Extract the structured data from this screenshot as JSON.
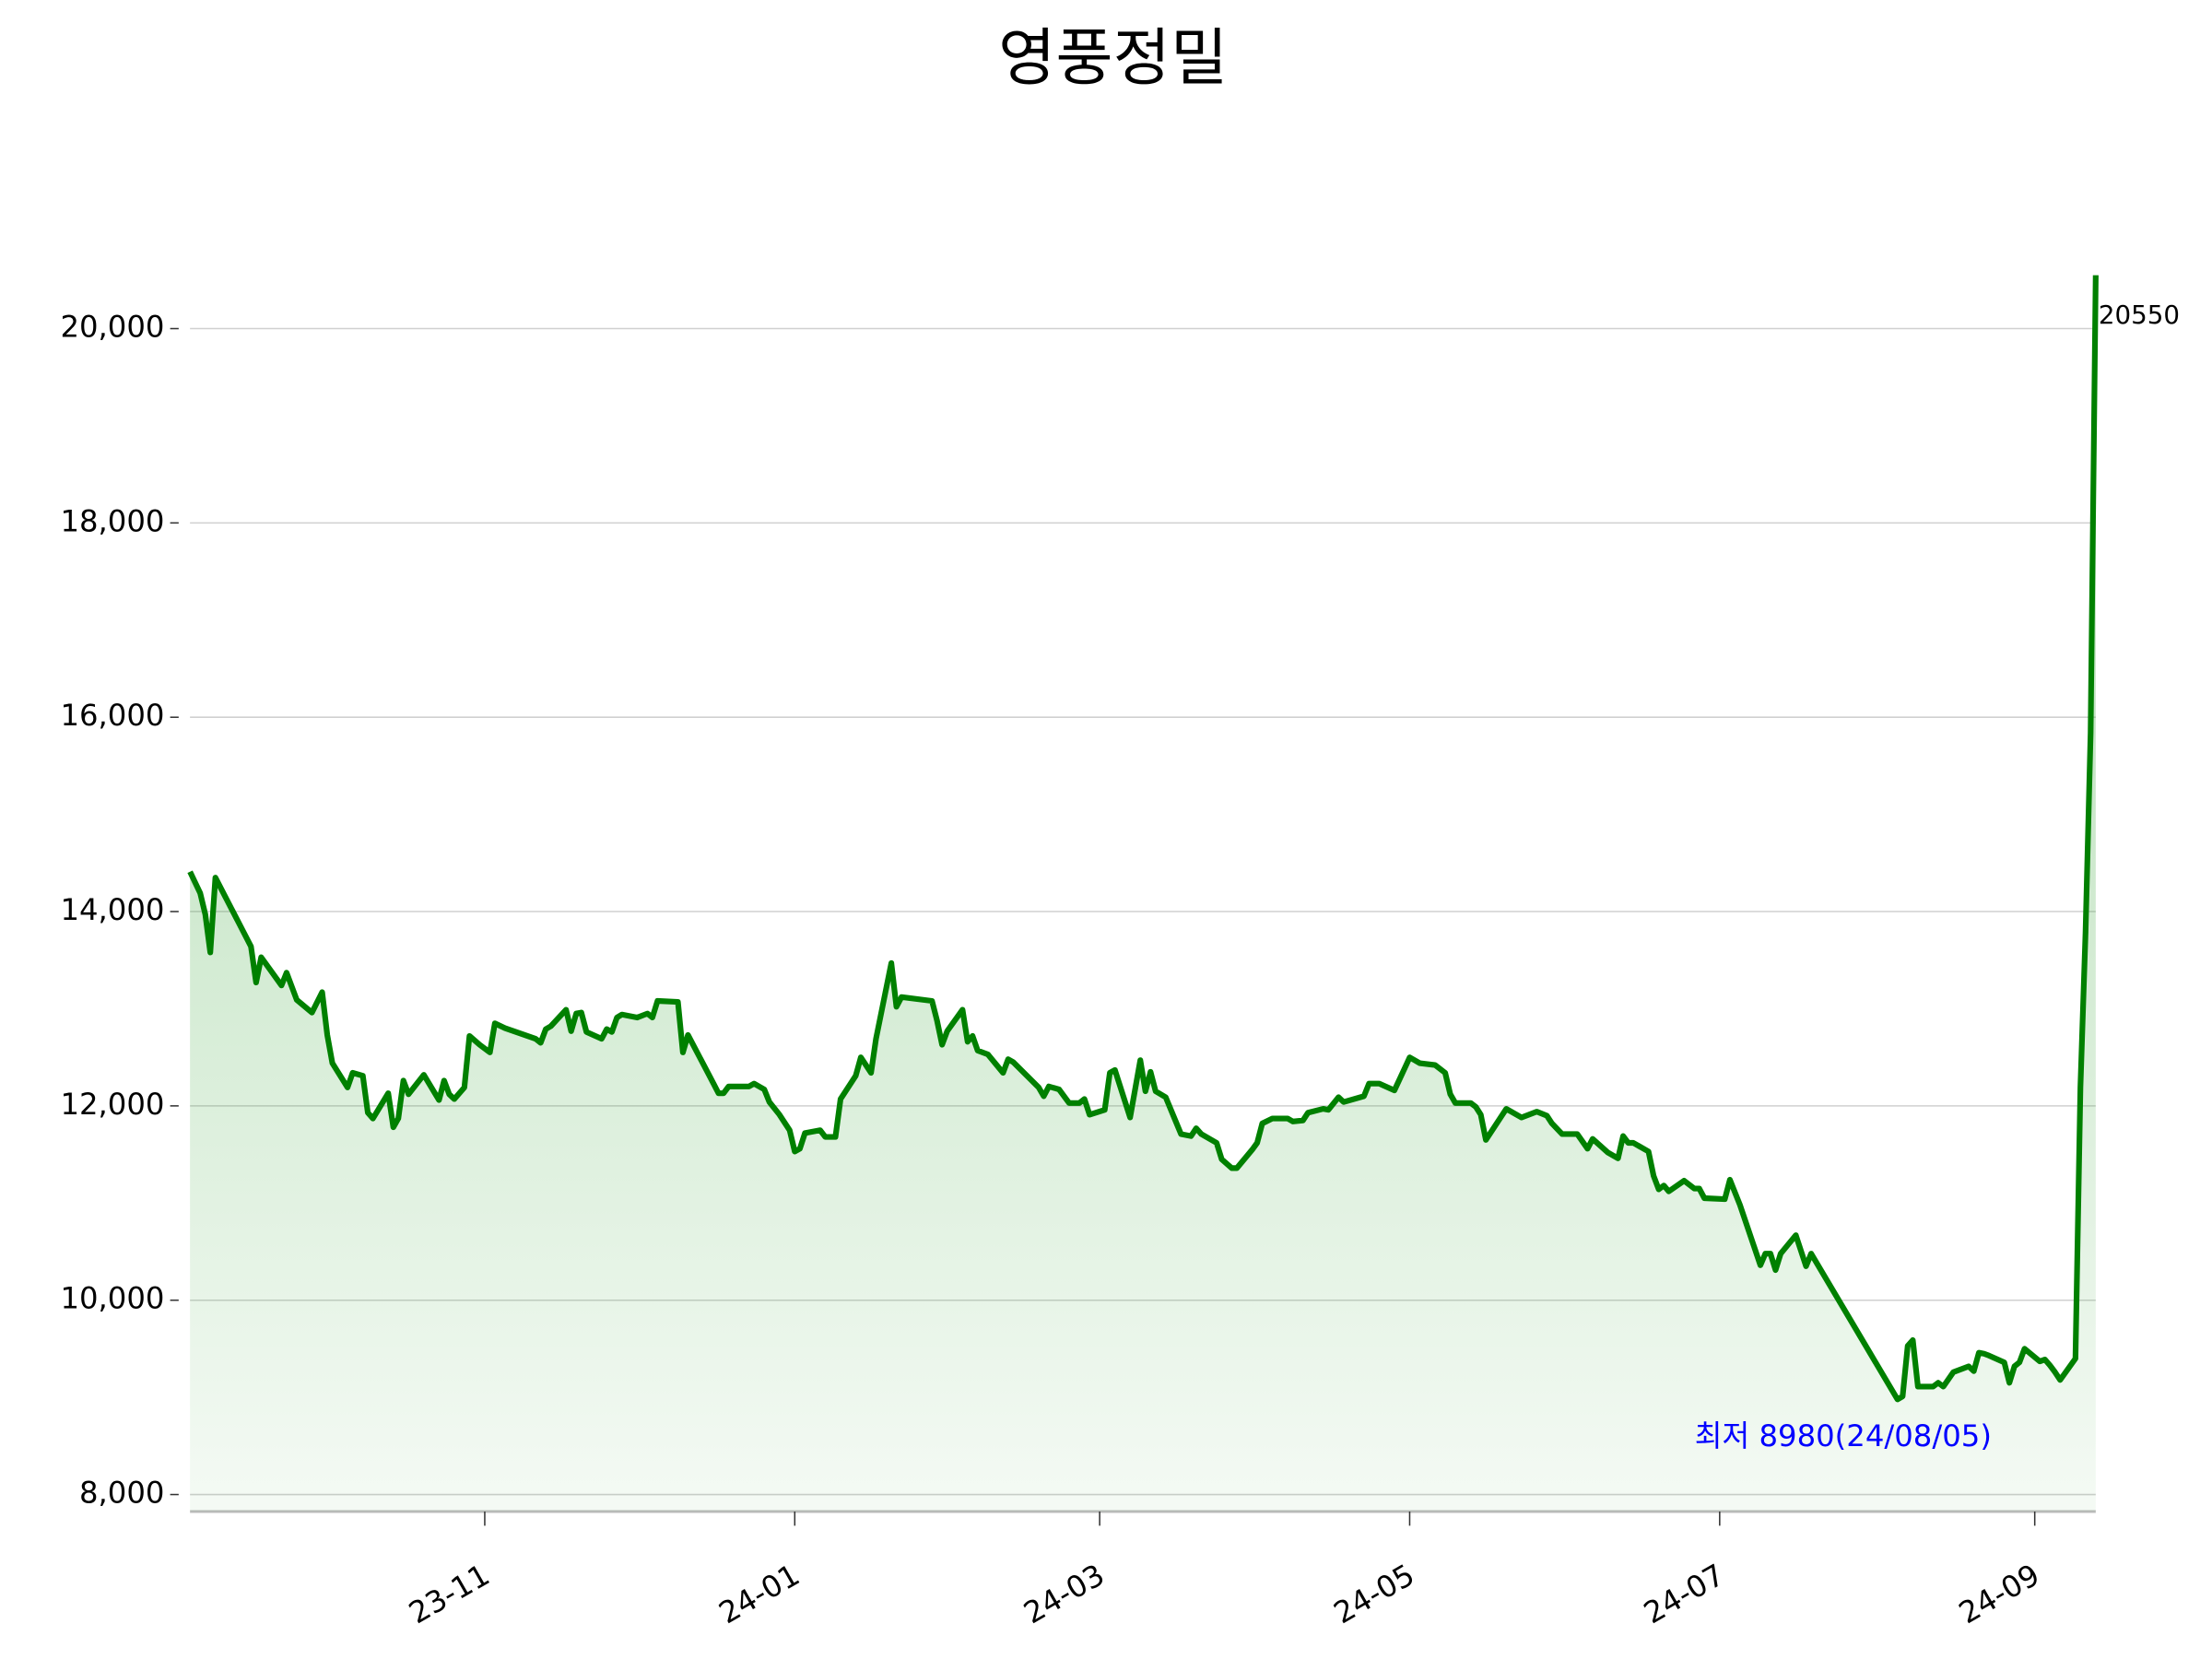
{
  "chart_data": {
    "type": "line",
    "title": "영풍정밀",
    "x": [
      "2023-09-04",
      "2023-09-06",
      "2023-09-07",
      "2023-09-08",
      "2023-09-09",
      "2023-09-16",
      "2023-09-17",
      "2023-09-18",
      "2023-09-22",
      "2023-09-23",
      "2023-09-25",
      "2023-09-28",
      "2023-09-30",
      "2023-10-01",
      "2023-10-02",
      "2023-10-05",
      "2023-10-06",
      "2023-10-08",
      "2023-10-09",
      "2023-10-10",
      "2023-10-13",
      "2023-10-14",
      "2023-10-15",
      "2023-10-16",
      "2023-10-17",
      "2023-10-20",
      "2023-10-23",
      "2023-10-24",
      "2023-10-25",
      "2023-10-26",
      "2023-10-28",
      "2023-10-29",
      "2023-10-31",
      "2023-11-02",
      "2023-11-03",
      "2023-11-05",
      "2023-11-11",
      "2023-11-12",
      "2023-11-13",
      "2023-11-14",
      "2023-11-17",
      "2023-11-18",
      "2023-11-19",
      "2023-11-20",
      "2023-11-21",
      "2023-11-24",
      "2023-11-25",
      "2023-11-26",
      "2023-11-27",
      "2023-11-28",
      "2023-12-01",
      "2023-12-03",
      "2023-12-04",
      "2023-12-05",
      "2023-12-09",
      "2023-12-10",
      "2023-12-11",
      "2023-12-16",
      "2023-12-17",
      "2023-12-18",
      "2023-12-19",
      "2023-12-23",
      "2023-12-24",
      "2023-12-26",
      "2023-12-27",
      "2023-12-29",
      "2023-12-31",
      "2024-01-01",
      "2024-01-02",
      "2024-01-03",
      "2024-01-06",
      "2024-01-07",
      "2024-01-09",
      "2024-01-10",
      "2024-01-13",
      "2024-01-14",
      "2024-01-16",
      "2024-01-17",
      "2024-01-20",
      "2024-01-21",
      "2024-01-22",
      "2024-01-28",
      "2024-01-29",
      "2024-01-30",
      "2024-01-31",
      "2024-02-03",
      "2024-02-04",
      "2024-02-05",
      "2024-02-06",
      "2024-02-08",
      "2024-02-11",
      "2024-02-12",
      "2024-02-13",
      "2024-02-18",
      "2024-02-19",
      "2024-02-20",
      "2024-02-22",
      "2024-02-24",
      "2024-02-26",
      "2024-02-27",
      "2024-02-28",
      "2024-03-02",
      "2024-03-03",
      "2024-03-04",
      "2024-03-07",
      "2024-03-09",
      "2024-03-10",
      "2024-03-11",
      "2024-03-12",
      "2024-03-14",
      "2024-03-17",
      "2024-03-19",
      "2024-03-20",
      "2024-03-21",
      "2024-03-24",
      "2024-03-25",
      "2024-03-27",
      "2024-03-28",
      "2024-03-31",
      "2024-04-01",
      "2024-04-02",
      "2024-04-04",
      "2024-04-07",
      "2024-04-08",
      "2024-04-10",
      "2024-04-11",
      "2024-04-14",
      "2024-04-15",
      "2024-04-17",
      "2024-04-18",
      "2024-04-22",
      "2024-04-23",
      "2024-04-25",
      "2024-04-28",
      "2024-05-01",
      "2024-05-03",
      "2024-05-06",
      "2024-05-08",
      "2024-05-09",
      "2024-05-10",
      "2024-05-13",
      "2024-05-14",
      "2024-05-15",
      "2024-05-16",
      "2024-05-20",
      "2024-05-23",
      "2024-05-26",
      "2024-05-28",
      "2024-05-29",
      "2024-05-31",
      "2024-06-03",
      "2024-06-05",
      "2024-06-06",
      "2024-06-09",
      "2024-06-11",
      "2024-06-12",
      "2024-06-13",
      "2024-06-14",
      "2024-06-17",
      "2024-06-18",
      "2024-06-19",
      "2024-06-20",
      "2024-06-21",
      "2024-06-24",
      "2024-06-26",
      "2024-06-27",
      "2024-06-28",
      "2024-07-02",
      "2024-07-03",
      "2024-07-05",
      "2024-07-09",
      "2024-07-10",
      "2024-07-11",
      "2024-07-12",
      "2024-07-13",
      "2024-07-16",
      "2024-07-18",
      "2024-07-19",
      "2024-08-05",
      "2024-08-06",
      "2024-08-07",
      "2024-08-08",
      "2024-08-09",
      "2024-08-12",
      "2024-08-13",
      "2024-08-14",
      "2024-08-16",
      "2024-08-19",
      "2024-08-20",
      "2024-08-21",
      "2024-08-22",
      "2024-08-23",
      "2024-08-26",
      "2024-08-27",
      "2024-08-28",
      "2024-08-29",
      "2024-08-30",
      "2024-09-02",
      "2024-09-03",
      "2024-09-04",
      "2024-09-05",
      "2024-09-06",
      "2024-09-09",
      "2024-09-10",
      "2024-09-11",
      "2024-09-12",
      "2024-09-13"
    ],
    "values": [
      14410,
      14190,
      13970,
      13580,
      14350,
      13640,
      13270,
      13530,
      13240,
      13370,
      13090,
      12960,
      13170,
      12730,
      12440,
      12190,
      12340,
      12310,
      11930,
      11870,
      12130,
      11780,
      11870,
      12260,
      12120,
      12320,
      12060,
      12260,
      12120,
      12070,
      12190,
      12720,
      12630,
      12550,
      12850,
      12800,
      12690,
      12650,
      12790,
      12820,
      12990,
      12770,
      12950,
      12960,
      12760,
      12690,
      12790,
      12760,
      12910,
      12940,
      12910,
      12950,
      12910,
      13080,
      13070,
      12550,
      12730,
      12230,
      12130,
      12130,
      12200,
      12200,
      12230,
      12170,
      12040,
      11910,
      11750,
      11530,
      11560,
      11720,
      11750,
      11680,
      11680,
      12070,
      12310,
      12500,
      12340,
      12690,
      13470,
      13020,
      13120,
      13080,
      12880,
      12630,
      12770,
      12990,
      12660,
      12720,
      12570,
      12530,
      12340,
      12480,
      12450,
      12190,
      12100,
      12200,
      12170,
      12030,
      12030,
      12070,
      11910,
      11960,
      12340,
      12370,
      11880,
      12470,
      12150,
      12350,
      12150,
      12090,
      11710,
      11690,
      11770,
      11710,
      11620,
      11450,
      11360,
      11360,
      11550,
      11620,
      11820,
      11870,
      11870,
      11840,
      11850,
      11930,
      11970,
      11960,
      12090,
      12040,
      12100,
      12230,
      12230,
      12160,
      12500,
      12440,
      12420,
      12340,
      12120,
      12030,
      12030,
      11990,
      11910,
      11650,
      11970,
      11880,
      11940,
      11900,
      11820,
      11710,
      11710,
      11560,
      11660,
      11520,
      11460,
      11690,
      11620,
      11620,
      11530,
      11280,
      11140,
      11180,
      11120,
      11230,
      11150,
      11150,
      11050,
      11040,
      11240,
      10980,
      10360,
      10480,
      10480,
      10310,
      10480,
      10670,
      10350,
      10480,
      8980,
      9010,
      9530,
      9590,
      9110,
      9110,
      9150,
      9110,
      9260,
      9320,
      9270,
      9460,
      9450,
      9430,
      9360,
      9150,
      9320,
      9360,
      9500,
      9370,
      9390,
      9330,
      9260,
      9180,
      9400,
      12190,
      13780,
      15840,
      20550
    ],
    "color": "#008000",
    "xlim": [
      "2023-09-04",
      "2024-09-13"
    ],
    "xticks": [
      {
        "value": "2023-11-01",
        "label": "23-11"
      },
      {
        "value": "2024-01-01",
        "label": "24-01"
      },
      {
        "value": "2024-03-01",
        "label": "24-03"
      },
      {
        "value": "2024-05-01",
        "label": "24-05"
      },
      {
        "value": "2024-07-01",
        "label": "24-07"
      },
      {
        "value": "2024-09-01",
        "label": "24-09"
      }
    ],
    "ylim": [
      7825,
      20580
    ],
    "yticks": [
      {
        "value": 8000,
        "label": "8,000"
      },
      {
        "value": 10000,
        "label": "10,000"
      },
      {
        "value": 12000,
        "label": "12,000"
      },
      {
        "value": 14000,
        "label": "14,000"
      },
      {
        "value": 16000,
        "label": "16,000"
      },
      {
        "value": 18000,
        "label": "18,000"
      },
      {
        "value": 20000,
        "label": "20,000"
      }
    ],
    "grid": true,
    "annotations": [
      {
        "text": "최저 8980(24/08/05)",
        "color": "#0000ff"
      },
      {
        "text": "20550",
        "color": "#000000"
      }
    ]
  }
}
